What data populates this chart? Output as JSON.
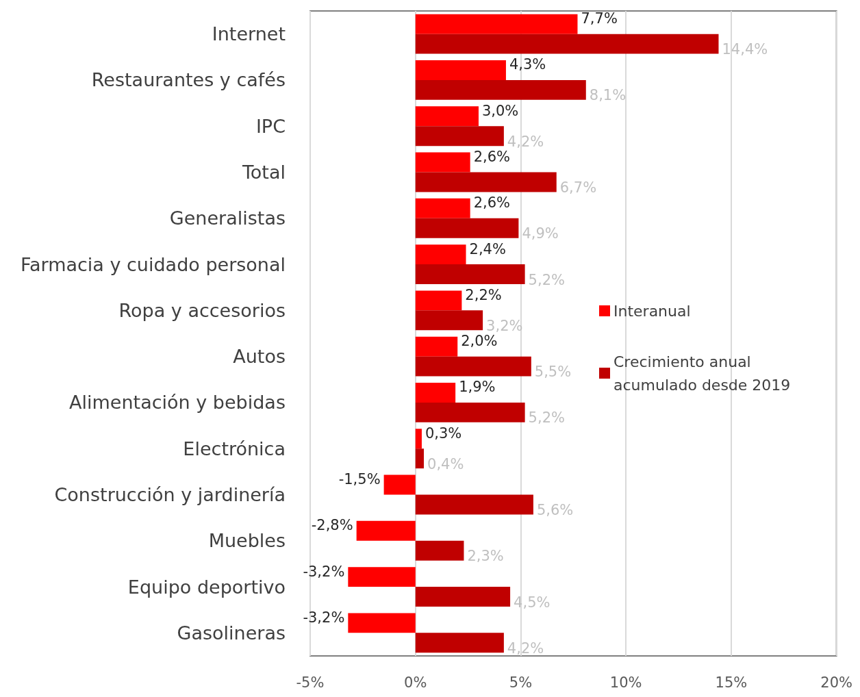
{
  "chart_data": {
    "type": "bar",
    "orientation": "horizontal",
    "categories": [
      "Internet",
      "Restaurantes y cafés",
      "IPC",
      "Total",
      "Generalistas",
      "Farmacia y cuidado personal",
      "Ropa y accesorios",
      "Autos",
      "Alimentación y bebidas",
      "Electrónica",
      "Construcción y jardinería",
      "Muebles",
      "Equipo deportivo",
      "Gasolineras"
    ],
    "series": [
      {
        "name": "Interanual",
        "color": "#ff0000",
        "values": [
          7.7,
          4.3,
          3.0,
          2.6,
          2.6,
          2.4,
          2.2,
          2.0,
          1.9,
          0.3,
          -1.5,
          -2.8,
          -3.2,
          -3.2
        ],
        "value_labels": [
          "7,7%",
          "4,3%",
          "3,0%",
          "2,6%",
          "2,6%",
          "2,4%",
          "2,2%",
          "2,0%",
          "1,9%",
          "0,3%",
          "-1,5%",
          "-2,8%",
          "-3,2%",
          "-3,2%"
        ]
      },
      {
        "name": "Crecimiento anual acumulado desde 2019",
        "color": "#c00000",
        "values": [
          14.4,
          8.1,
          4.2,
          6.7,
          4.9,
          5.2,
          3.2,
          5.5,
          5.2,
          0.4,
          5.6,
          2.3,
          4.5,
          4.2
        ],
        "value_labels": [
          "14,4%",
          "8,1%",
          "4,2%",
          "6,7%",
          "4,9%",
          "5,2%",
          "3,2%",
          "5,5%",
          "5,2%",
          "0,4%",
          "5,6%",
          "2,3%",
          "4,5%",
          "4,2%"
        ]
      }
    ],
    "xlim": [
      -5,
      20
    ],
    "xticks": [
      {
        "value": -5,
        "label": "-5%"
      },
      {
        "value": 0,
        "label": "0%"
      },
      {
        "value": 5,
        "label": "5%"
      },
      {
        "value": 10,
        "label": "10%"
      },
      {
        "value": 15,
        "label": "15%"
      },
      {
        "value": 20,
        "label": "20%"
      }
    ],
    "grid": "x",
    "legend": "right"
  }
}
